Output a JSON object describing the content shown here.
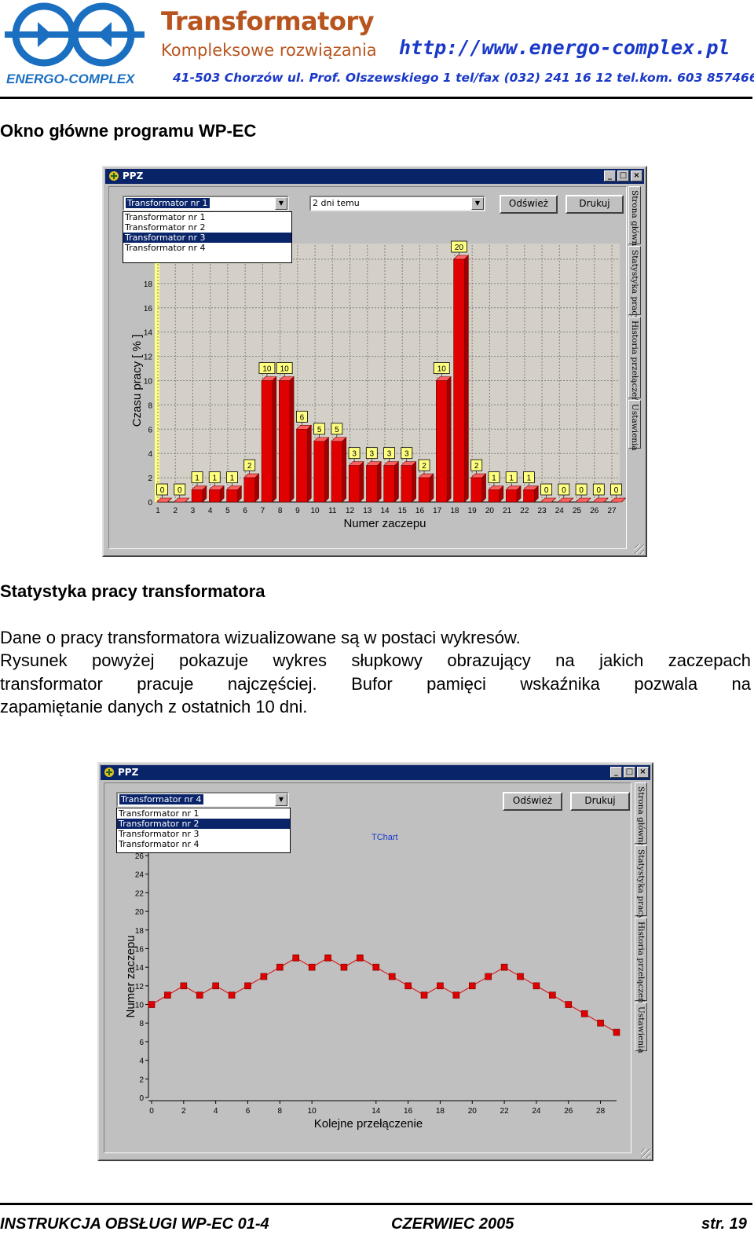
{
  "letterhead": {
    "logo_text": "ENERGO-COMPLEX",
    "title": "Transformatory",
    "subtitle": "Kompleksowe rozwiązania",
    "url": "http://www.energo-complex.pl",
    "address": "41-503 Chorzów ul. Prof. Olszewskiego 1 tel/fax (032) 241 16 12 tel.kom. 603 857466"
  },
  "section1": {
    "heading": "Okno główne programu WP-EC"
  },
  "window1": {
    "title": "PPZ",
    "combo_transformer": "Transformator nr 1",
    "dropdown_items": [
      "Transformator nr 1",
      "Transformator nr 2",
      "Transformator nr 3",
      "Transformator nr 4"
    ],
    "combo_period": "2 dni temu",
    "refresh_label": "Odśwież",
    "print_label": "Drukuj",
    "tabs": [
      "Strona główna",
      "Statystyka pracy",
      "Historia przełączeń",
      "Ustawienia"
    ]
  },
  "section2": {
    "heading": "Statystyka pracy transformatora",
    "paragraph1": "Dane o pracy transformatora wizualizowane są w postaci wykresów.",
    "paragraph2_lines": [
      "Rysunek powyżej pokazuje wykres słupkowy obrazujący na jakich zaczepach",
      "transformator pracuje najczęściej. Bufor pamięci wskaźnika pozwala na",
      "zapamiętanie danych z ostatnich 10 dni."
    ]
  },
  "window2": {
    "title": "PPZ",
    "combo_transformer": "Transformator nr 4",
    "dropdown_items": [
      "Transformator nr 1",
      "Transformator nr 2",
      "Transformator nr 3",
      "Transformator nr 4"
    ],
    "refresh_label": "Odśwież",
    "print_label": "Drukuj",
    "tabs": [
      "Strona główna",
      "Statystyka pracy",
      "Historia przełączeń",
      "Ustawienia"
    ]
  },
  "footer": {
    "left": "INSTRUKCJA OBSŁUGI WP-EC 01-4",
    "center": "CZERWIEC 2005",
    "right": "str. 19"
  },
  "colors": {
    "bar": "#e00000",
    "line": "#e00000",
    "titlebar": "#0a246a",
    "brand": "#b8541e",
    "link": "#1a39c8"
  },
  "chart_data": [
    {
      "type": "bar",
      "title": "",
      "xlabel": "Numer zaczepu",
      "ylabel": "Czasu pracy  [ % ]",
      "categories": [
        "1",
        "2",
        "3",
        "4",
        "5",
        "6",
        "7",
        "8",
        "9",
        "10",
        "11",
        "12",
        "13",
        "14",
        "15",
        "16",
        "17",
        "18",
        "19",
        "20",
        "21",
        "22",
        "23",
        "24",
        "25",
        "26",
        "27"
      ],
      "values": [
        0,
        0,
        1,
        1,
        1,
        2,
        10,
        10,
        6,
        5,
        5,
        3,
        3,
        3,
        3,
        2,
        10,
        20,
        2,
        1,
        1,
        1,
        0,
        0,
        0,
        0,
        0
      ],
      "ylim": [
        0,
        20
      ],
      "yticks": [
        0,
        2,
        4,
        6,
        8,
        10,
        12,
        14,
        16,
        18,
        20
      ],
      "grid": true,
      "data_labels": true
    },
    {
      "type": "line",
      "title": "TChart",
      "xlabel": "Kolejne przełączenie",
      "ylabel": "Numer zaczepu",
      "x": [
        0,
        1,
        2,
        3,
        4,
        5,
        6,
        7,
        8,
        9,
        10,
        11,
        12,
        13,
        14,
        15,
        16,
        17,
        18,
        19,
        20,
        21,
        22,
        23,
        24,
        25,
        26,
        27,
        28,
        29
      ],
      "y": [
        10,
        11,
        12,
        11,
        12,
        11,
        12,
        13,
        14,
        15,
        14,
        15,
        14,
        15,
        14,
        13,
        12,
        11,
        12,
        11,
        12,
        13,
        14,
        13,
        12,
        11,
        10,
        9,
        8,
        7
      ],
      "xticks": [
        0,
        2,
        4,
        6,
        8,
        10,
        14,
        16,
        18,
        20,
        22,
        24,
        26,
        28
      ],
      "yticks": [
        0,
        2,
        4,
        6,
        8,
        10,
        12,
        14,
        16,
        18,
        20,
        22,
        24,
        26
      ],
      "xlim": [
        0,
        29
      ],
      "ylim": [
        0,
        26
      ],
      "grid": false
    }
  ]
}
